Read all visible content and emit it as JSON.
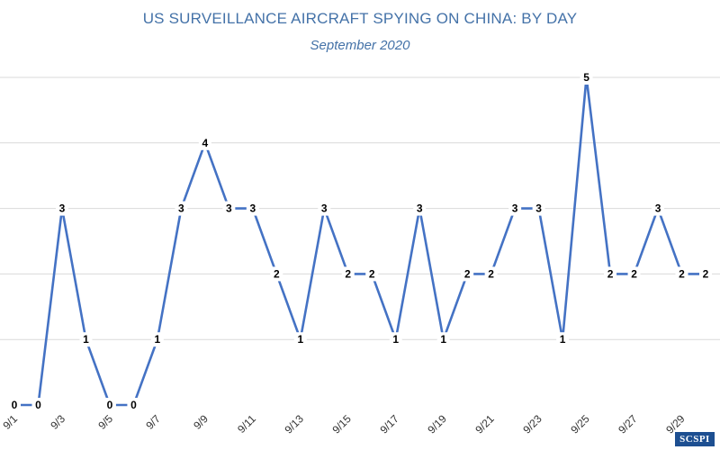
{
  "chart_data": {
    "type": "line",
    "title": "US SURVEILLANCE AIRCRAFT SPYING ON CHINA: BY DAY",
    "subtitle": "September 2020",
    "xlabel": "",
    "ylabel": "",
    "x": [
      "9/1",
      "9/2",
      "9/3",
      "9/4",
      "9/5",
      "9/6",
      "9/7",
      "9/8",
      "9/9",
      "9/10",
      "9/11",
      "9/12",
      "9/13",
      "9/14",
      "9/15",
      "9/16",
      "9/17",
      "9/18",
      "9/19",
      "9/20",
      "9/21",
      "9/22",
      "9/23",
      "9/24",
      "9/25",
      "9/26",
      "9/27",
      "9/28",
      "9/29",
      "9/30"
    ],
    "tick_labels": [
      "9/1",
      "9/3",
      "9/5",
      "9/7",
      "9/9",
      "9/11",
      "9/13",
      "9/15",
      "9/17",
      "9/19",
      "9/21",
      "9/23",
      "9/25",
      "9/27",
      "9/29"
    ],
    "series": [
      {
        "values": [
          0,
          0,
          3,
          1,
          0,
          0,
          1,
          3,
          4,
          3,
          3,
          2,
          1,
          3,
          2,
          2,
          1,
          3,
          1,
          2,
          2,
          3,
          3,
          1,
          5,
          2,
          2,
          3,
          2,
          2
        ]
      }
    ],
    "ylim": [
      0,
      5
    ],
    "grid": true,
    "legend": "none",
    "line_color": "#4472c4"
  },
  "branding": {
    "badge_text": "SCSPI",
    "badge_color": "#1d4f91"
  }
}
